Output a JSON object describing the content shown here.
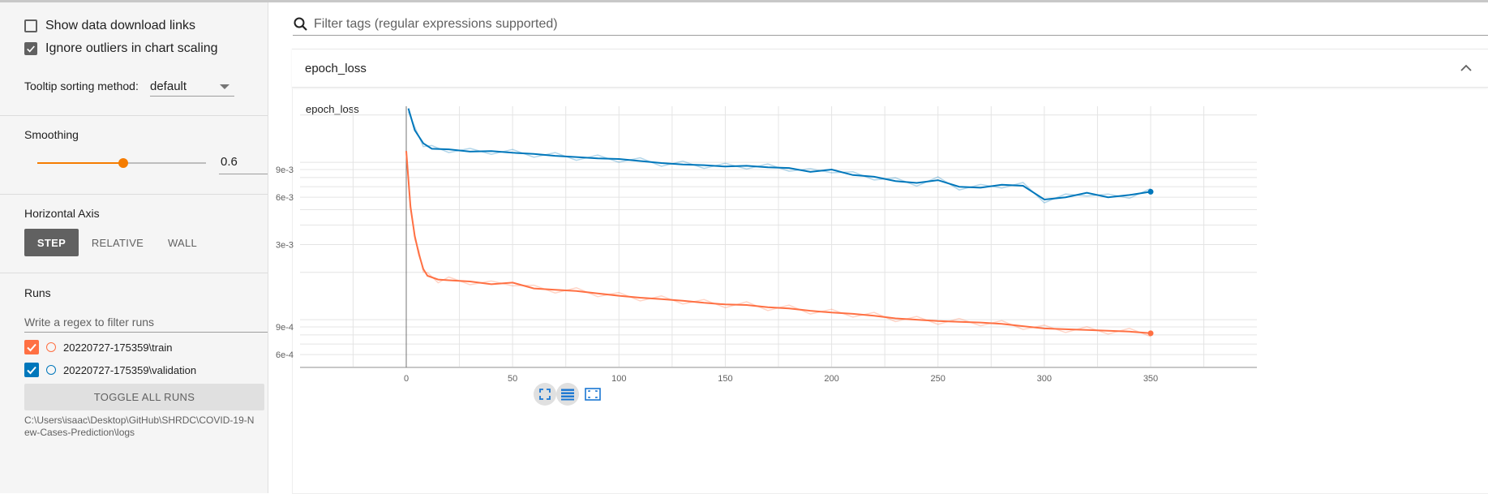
{
  "sidebar": {
    "show_download_links": {
      "label": "Show data download links",
      "checked": false
    },
    "ignore_outliers": {
      "label": "Ignore outliers in chart scaling",
      "checked": true
    },
    "tooltip_sorting": {
      "label": "Tooltip sorting method:",
      "value": "default"
    },
    "smoothing": {
      "label": "Smoothing",
      "value": "0.6",
      "fraction": 0.6
    },
    "horizontal_axis": {
      "label": "Horizontal Axis",
      "options": [
        "STEP",
        "RELATIVE",
        "WALL"
      ],
      "selected": "STEP"
    },
    "runs": {
      "label": "Runs",
      "filter_placeholder": "Write a regex to filter runs",
      "items": [
        {
          "label": "20220727-175359\\train",
          "color": "#ff7043",
          "checked": true
        },
        {
          "label": "20220727-175359\\validation",
          "color": "#0077bb",
          "checked": true
        }
      ],
      "toggle_all_label": "TOGGLE ALL RUNS",
      "log_dir": "C:\\Users\\isaac\\Desktop\\GitHub\\SHRDC\\COVID-19-New-Cases-Prediction\\logs"
    }
  },
  "main": {
    "search_placeholder": "Filter tags (regular expressions supported)",
    "card_title": "epoch_loss"
  },
  "colors": {
    "accent": "#f57c00",
    "train": "#ff7043",
    "validation": "#0077bb"
  },
  "chart_data": {
    "type": "line",
    "title": "epoch_loss",
    "xlabel": "",
    "ylabel": "",
    "x_ticks": [
      "0",
      "50",
      "100",
      "150",
      "200",
      "250",
      "300",
      "350"
    ],
    "y_ticks": [
      "6e-4",
      "9e-4",
      "3e-3",
      "6e-3",
      "9e-3"
    ],
    "xlim": [
      -50,
      400
    ],
    "y_scale": "log",
    "grid": true,
    "series": [
      {
        "name": "20220727-175359\\validation",
        "x": [
          1,
          4,
          8,
          12,
          20,
          30,
          40,
          50,
          60,
          70,
          80,
          90,
          100,
          110,
          120,
          130,
          140,
          150,
          160,
          170,
          180,
          190,
          200,
          210,
          220,
          230,
          240,
          250,
          260,
          270,
          280,
          290,
          300,
          310,
          320,
          330,
          340,
          350
        ],
        "y": [
          0.022,
          0.016,
          0.0132,
          0.0122,
          0.0121,
          0.0117,
          0.0118,
          0.0115,
          0.0113,
          0.011,
          0.0108,
          0.0106,
          0.0105,
          0.0102,
          0.0099,
          0.0097,
          0.0096,
          0.0094,
          0.0095,
          0.0093,
          0.0092,
          0.0087,
          0.009,
          0.0083,
          0.0081,
          0.0076,
          0.0074,
          0.0077,
          0.007,
          0.0069,
          0.0072,
          0.0071,
          0.0058,
          0.006,
          0.0064,
          0.006,
          0.0062,
          0.0065
        ]
      },
      {
        "name": "20220727-175359\\train",
        "x": [
          0,
          2,
          4,
          6,
          8,
          10,
          15,
          20,
          30,
          40,
          50,
          60,
          70,
          80,
          90,
          100,
          110,
          120,
          130,
          140,
          150,
          160,
          170,
          180,
          190,
          200,
          210,
          220,
          230,
          240,
          250,
          260,
          270,
          280,
          290,
          300,
          310,
          320,
          330,
          340,
          350
        ],
        "y": [
          0.0118,
          0.0052,
          0.0034,
          0.0026,
          0.0021,
          0.0019,
          0.0018,
          0.00178,
          0.00175,
          0.00168,
          0.00172,
          0.00158,
          0.00155,
          0.00152,
          0.00147,
          0.00142,
          0.00138,
          0.00135,
          0.00132,
          0.00128,
          0.00125,
          0.00124,
          0.0012,
          0.00118,
          0.00114,
          0.00111,
          0.00109,
          0.00106,
          0.00102,
          0.001,
          0.00098,
          0.00097,
          0.00096,
          0.00094,
          0.00091,
          0.00088,
          0.00087,
          0.00086,
          0.00085,
          0.00084,
          0.00082
        ]
      }
    ]
  }
}
